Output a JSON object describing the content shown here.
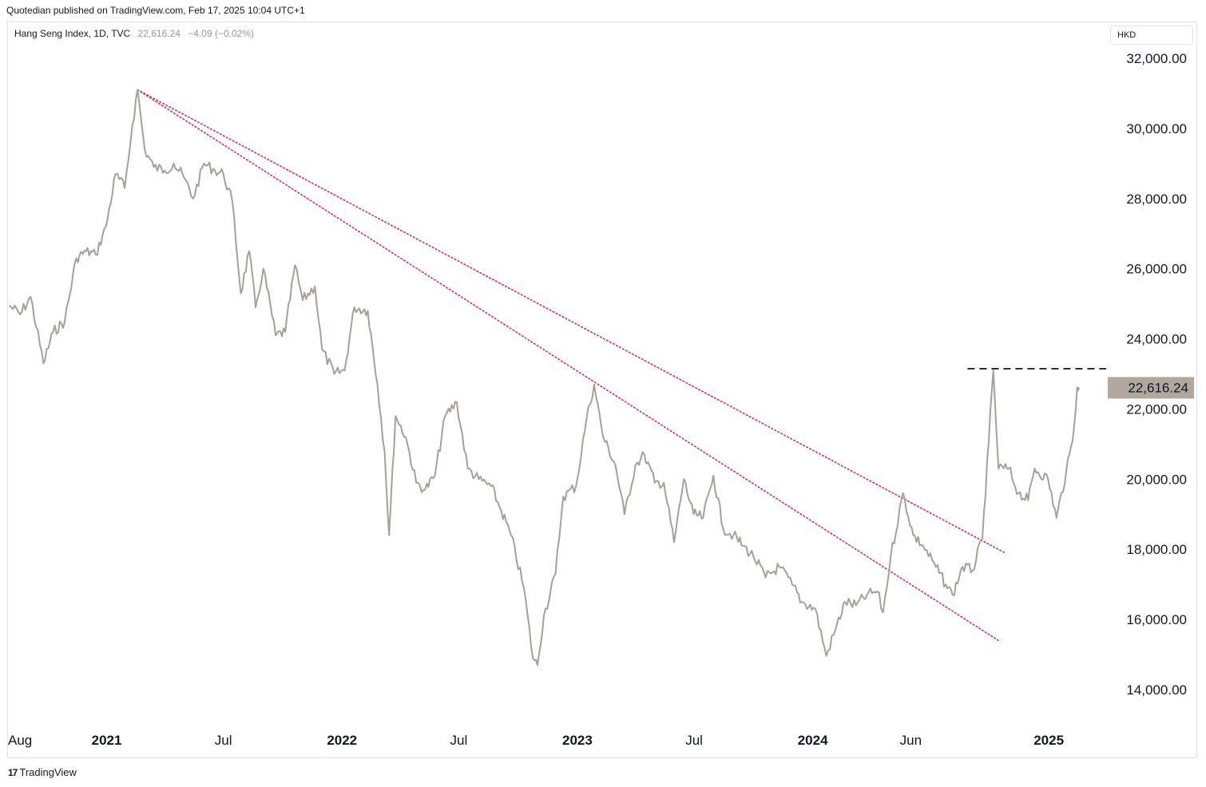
{
  "header": {
    "published": "Quotedian published on TradingView.com, Feb 17, 2025 10:04 UTC+1"
  },
  "legend": {
    "symbol": "Hang Seng Index, 1D, TVC",
    "last": "22,616.24",
    "change": "−4.09 (−0.02%)"
  },
  "price_scale": {
    "currency": "HKD"
  },
  "footer": {
    "brand": "TradingView",
    "logo_glyph": "17"
  },
  "colors": {
    "price_line": "#a89f96",
    "trendline": "#e0245e",
    "resistance": "#000000",
    "last_price_bg": "#b0a79e"
  },
  "chart_data": {
    "type": "line",
    "series": [
      {
        "values": [
          [
            "2020-08-03",
            24950
          ],
          [
            "2020-08-20",
            24700
          ],
          [
            "2020-09-05",
            25200
          ],
          [
            "2020-09-25",
            23300
          ],
          [
            "2020-10-10",
            24200
          ],
          [
            "2020-10-28",
            24500
          ],
          [
            "2020-11-15",
            26300
          ],
          [
            "2020-11-30",
            26500
          ],
          [
            "2020-12-15",
            26400
          ],
          [
            "2020-12-31",
            27200
          ],
          [
            "2021-01-15",
            28700
          ],
          [
            "2021-01-29",
            28300
          ],
          [
            "2021-02-10",
            30100
          ],
          [
            "2021-02-18",
            31100
          ],
          [
            "2021-03-01",
            29400
          ],
          [
            "2021-03-15",
            28900
          ],
          [
            "2021-04-01",
            28800
          ],
          [
            "2021-04-15",
            29000
          ],
          [
            "2021-05-01",
            28600
          ],
          [
            "2021-05-15",
            28000
          ],
          [
            "2021-06-01",
            29000
          ],
          [
            "2021-06-18",
            28800
          ],
          [
            "2021-07-01",
            28700
          ],
          [
            "2021-07-15",
            27900
          ],
          [
            "2021-07-28",
            25300
          ],
          [
            "2021-08-10",
            26500
          ],
          [
            "2021-08-20",
            24900
          ],
          [
            "2021-09-01",
            26000
          ],
          [
            "2021-09-20",
            24100
          ],
          [
            "2021-10-05",
            24200
          ],
          [
            "2021-10-20",
            26100
          ],
          [
            "2021-11-01",
            25100
          ],
          [
            "2021-11-20",
            25500
          ],
          [
            "2021-12-01",
            23700
          ],
          [
            "2021-12-20",
            23000
          ],
          [
            "2022-01-05",
            23100
          ],
          [
            "2022-01-20",
            24900
          ],
          [
            "2022-02-10",
            24800
          ],
          [
            "2022-02-25",
            22700
          ],
          [
            "2022-03-08",
            20800
          ],
          [
            "2022-03-15",
            18400
          ],
          [
            "2022-03-25",
            21800
          ],
          [
            "2022-04-10",
            21200
          ],
          [
            "2022-04-26",
            19900
          ],
          [
            "2022-05-10",
            19700
          ],
          [
            "2022-05-25",
            20100
          ],
          [
            "2022-06-10",
            21800
          ],
          [
            "2022-06-28",
            22200
          ],
          [
            "2022-07-15",
            20300
          ],
          [
            "2022-08-01",
            20000
          ],
          [
            "2022-08-20",
            19800
          ],
          [
            "2022-09-05",
            19100
          ],
          [
            "2022-09-20",
            18400
          ],
          [
            "2022-10-10",
            16900
          ],
          [
            "2022-10-24",
            14900
          ],
          [
            "2022-10-31",
            14700
          ],
          [
            "2022-11-10",
            16100
          ],
          [
            "2022-11-28",
            17300
          ],
          [
            "2022-12-10",
            19500
          ],
          [
            "2022-12-30",
            19800
          ],
          [
            "2023-01-15",
            21700
          ],
          [
            "2023-01-27",
            22700
          ],
          [
            "2023-02-10",
            21200
          ],
          [
            "2023-03-01",
            20400
          ],
          [
            "2023-03-15",
            19000
          ],
          [
            "2023-04-01",
            20400
          ],
          [
            "2023-04-15",
            20700
          ],
          [
            "2023-05-01",
            19900
          ],
          [
            "2023-05-15",
            19900
          ],
          [
            "2023-05-31",
            18200
          ],
          [
            "2023-06-15",
            20000
          ],
          [
            "2023-06-30",
            19000
          ],
          [
            "2023-07-15",
            18900
          ],
          [
            "2023-07-31",
            20100
          ],
          [
            "2023-08-15",
            18600
          ],
          [
            "2023-08-31",
            18400
          ],
          [
            "2023-09-15",
            18100
          ],
          [
            "2023-10-01",
            17800
          ],
          [
            "2023-10-20",
            17200
          ],
          [
            "2023-11-10",
            17500
          ],
          [
            "2023-11-30",
            17000
          ],
          [
            "2023-12-15",
            16500
          ],
          [
            "2024-01-05",
            16300
          ],
          [
            "2024-01-22",
            14960
          ],
          [
            "2024-02-05",
            15700
          ],
          [
            "2024-02-20",
            16500
          ],
          [
            "2024-03-08",
            16400
          ],
          [
            "2024-03-25",
            16700
          ],
          [
            "2024-04-10",
            16800
          ],
          [
            "2024-04-19",
            16200
          ],
          [
            "2024-05-01",
            17800
          ],
          [
            "2024-05-20",
            19600
          ],
          [
            "2024-06-05",
            18400
          ],
          [
            "2024-06-20",
            18100
          ],
          [
            "2024-07-10",
            17500
          ],
          [
            "2024-07-25",
            17000
          ],
          [
            "2024-08-05",
            16700
          ],
          [
            "2024-08-20",
            17500
          ],
          [
            "2024-09-05",
            17400
          ],
          [
            "2024-09-20",
            18300
          ],
          [
            "2024-09-30",
            21100
          ],
          [
            "2024-10-07",
            23100
          ],
          [
            "2024-10-15",
            20300
          ],
          [
            "2024-10-31",
            20300
          ],
          [
            "2024-11-15",
            19600
          ],
          [
            "2024-11-30",
            19400
          ],
          [
            "2024-12-10",
            20300
          ],
          [
            "2024-12-31",
            20000
          ],
          [
            "2025-01-13",
            18900
          ],
          [
            "2025-01-28",
            20200
          ],
          [
            "2025-02-07",
            21100
          ],
          [
            "2025-02-14",
            22620
          ],
          [
            "2025-02-17",
            22616
          ]
        ]
      }
    ],
    "trendlines": [
      {
        "from": [
          "2021-02-18",
          31100
        ],
        "to": [
          "2024-10-25",
          17900
        ],
        "style": "dotted"
      },
      {
        "from": [
          "2021-02-18",
          31100
        ],
        "to": [
          "2024-10-15",
          15400
        ],
        "style": "dotted"
      }
    ],
    "horizontal_lines": [
      {
        "from": "2024-08-28",
        "to": "2025-03-31",
        "y": 23150,
        "style": "dashed"
      }
    ],
    "x_ticks": [
      {
        "date": "2020-08-01",
        "label": "Aug",
        "bold": false
      },
      {
        "date": "2021-01-01",
        "label": "2021",
        "bold": true
      },
      {
        "date": "2021-07-01",
        "label": "Jul",
        "bold": false
      },
      {
        "date": "2022-01-01",
        "label": "2022",
        "bold": true
      },
      {
        "date": "2022-07-01",
        "label": "Jul",
        "bold": false
      },
      {
        "date": "2023-01-01",
        "label": "2023",
        "bold": true
      },
      {
        "date": "2023-07-01",
        "label": "Jul",
        "bold": false
      },
      {
        "date": "2024-01-01",
        "label": "2024",
        "bold": true
      },
      {
        "date": "2024-06-01",
        "label": "Jun",
        "bold": false
      },
      {
        "date": "2025-01-01",
        "label": "2025",
        "bold": true
      }
    ],
    "y_ticks": [
      {
        "value": 32000,
        "label": "32,000.00"
      },
      {
        "value": 30000,
        "label": "30,000.00"
      },
      {
        "value": 28000,
        "label": "28,000.00"
      },
      {
        "value": 26000,
        "label": "26,000.00"
      },
      {
        "value": 24000,
        "label": "24,000.00"
      },
      {
        "value": 22000,
        "label": "22,000.00"
      },
      {
        "value": 20000,
        "label": "20,000.00"
      },
      {
        "value": 18000,
        "label": "18,000.00"
      },
      {
        "value": 16000,
        "label": "16,000.00"
      },
      {
        "value": 14000,
        "label": "14,000.00"
      }
    ],
    "last_price": {
      "value": 22616.24,
      "label": "22,616.24"
    },
    "x_range": [
      "2020-08-01",
      "2025-03-31"
    ],
    "ylim": [
      13000,
      32500
    ],
    "grid": false,
    "legend": "top-left"
  }
}
